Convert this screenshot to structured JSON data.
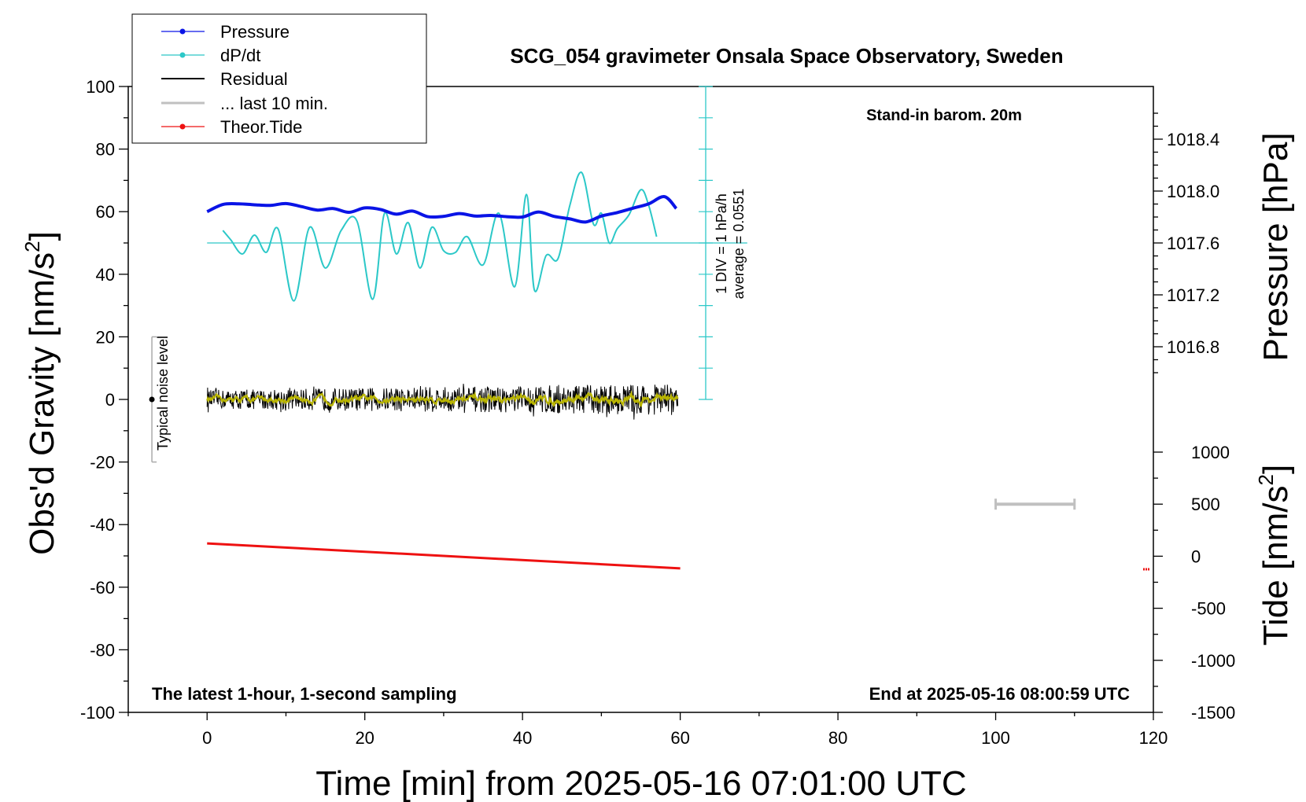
{
  "chart_data": {
    "type": "line",
    "title": "SCG_054 gravimeter Onsala Space Observatory, Sweden",
    "annotations": {
      "barometer_note": "Stand-in barom. 20m",
      "bottom_left": "The latest 1-hour, 1-second sampling",
      "bottom_right": "End at 2025-05-16 08:00:59 UTC",
      "noise_label": "Typical noise level",
      "dpdt_scale_line1": "1 DIV = 1 hPa/h",
      "dpdt_scale_line2": "average = 0.0551"
    },
    "xlabel": "Time [min] from 2025-05-16 07:01:00 UTC",
    "ylabel_left": "Obs'd Gravity [nm/s",
    "ylabel_left_sup": "2",
    "ylabel_left_end": "]",
    "ylabel_pressure": "Pressure [hPa]",
    "ylabel_tide": "Tide [nm/s",
    "ylabel_tide_sup": "2",
    "ylabel_tide_end": "]",
    "xlim": [
      -10,
      120
    ],
    "ylim_left": [
      -100,
      100
    ],
    "x_ticks": [
      "0",
      "20",
      "40",
      "60",
      "80",
      "100",
      "120"
    ],
    "y_ticks_left": [
      "100",
      "80",
      "60",
      "40",
      "20",
      "0",
      "-20",
      "-40",
      "-60",
      "-80",
      "-100"
    ],
    "pressure_ticks": [
      "1018.4",
      "1018.0",
      "1017.6",
      "1017.2",
      "1016.8"
    ],
    "tide_ticks": [
      "1000",
      "500",
      "0",
      "-500",
      "-1000",
      "-1500"
    ],
    "legend": {
      "placement": "top-left",
      "entries": [
        "Pressure",
        "dP/dt",
        "Residual",
        "... last 10 min.",
        "Theor.Tide"
      ]
    },
    "colors": {
      "pressure": "#0a14e6",
      "dpdt": "#2cc8c8",
      "residual": "#000000",
      "smoothed_residual": "#b8b400",
      "last10": "#c0c0c0",
      "tide": "#ee1111"
    },
    "series": [
      {
        "name": "Pressure",
        "x": [
          0,
          2,
          4,
          6,
          8,
          10,
          12,
          14,
          16,
          18,
          20,
          22,
          24,
          26,
          28,
          30,
          32,
          34,
          36,
          38,
          40,
          42,
          44,
          46,
          48,
          50,
          52,
          54,
          56,
          58,
          59.5
        ],
        "y": [
          60,
          62.3,
          62.5,
          62.2,
          62,
          62.6,
          61.6,
          60.5,
          61,
          59.8,
          61.2,
          60.7,
          59.2,
          60.2,
          58.4,
          58.5,
          59.4,
          58.6,
          58.8,
          58.4,
          58.3,
          59.9,
          58.5,
          57.7,
          56.7,
          58.6,
          59.7,
          61.1,
          62.5,
          64.8,
          61
        ]
      },
      {
        "name": "dP/dt",
        "x": [
          2,
          3,
          4.5,
          6,
          7.5,
          9,
          11,
          13,
          15,
          17,
          19,
          21,
          22.5,
          24,
          25.5,
          27,
          28.5,
          30,
          31.5,
          33,
          35,
          37,
          39,
          40.5,
          41.5,
          43,
          44.5,
          46,
          47.5,
          49,
          50,
          51,
          52,
          53.5,
          55,
          56,
          57
        ],
        "y": [
          54,
          51,
          46.5,
          52.5,
          47,
          54.5,
          31.5,
          55,
          42,
          54,
          57,
          32,
          59.5,
          46.5,
          56.5,
          42,
          55,
          47.5,
          47,
          52,
          43,
          59.5,
          36,
          65.5,
          35,
          46,
          45,
          62,
          72.5,
          56,
          59.5,
          50,
          54.5,
          59,
          67,
          62,
          52
        ]
      },
      {
        "name": "Residual",
        "x_range": [
          0,
          59.7
        ],
        "y_center": 0,
        "peak_to_peak_at_start": 6,
        "peak_to_peak_at_end": 10,
        "smoothed_residual_range": [
          -2,
          2
        ]
      },
      {
        "name": "Theor.Tide",
        "x": [
          0,
          60
        ],
        "y_left_axis_units": [
          -46,
          -54
        ]
      }
    ],
    "dpdt_baseline_y": 50,
    "noise_bar": {
      "x": -7,
      "y_range": [
        -20,
        20
      ],
      "center": 0
    },
    "last10_bar": {
      "x_range": [
        100,
        110
      ],
      "tide_value": 500
    }
  }
}
